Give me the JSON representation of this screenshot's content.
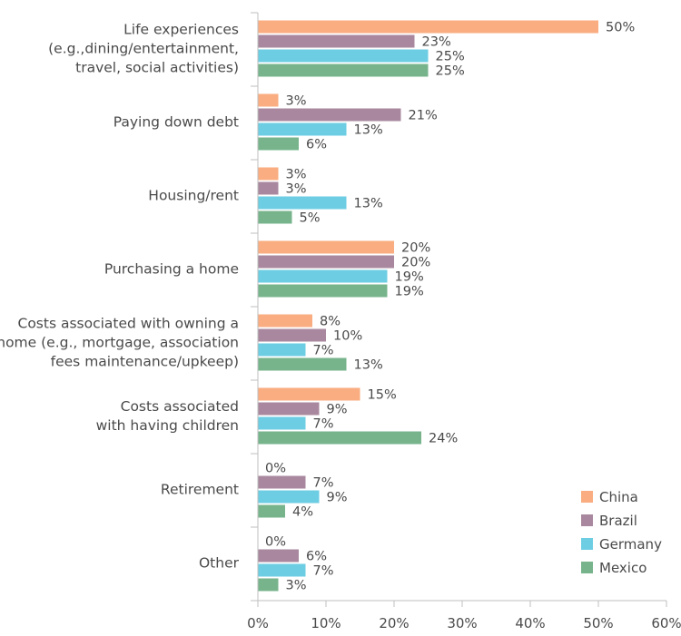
{
  "chart_data": {
    "type": "bar",
    "orientation": "horizontal",
    "title": "",
    "xlabel": "",
    "ylabel": "",
    "categories": [
      [
        "Life experiences",
        "(e.g.,dining/entertainment,",
        "travel, social activities)"
      ],
      [
        "Paying down debt"
      ],
      [
        "Housing/rent"
      ],
      [
        "Purchasing a home"
      ],
      [
        "Costs associated with owning a",
        "home (e.g., mortgage, association",
        "fees maintenance/upkeep)"
      ],
      [
        "Costs associated",
        "with having children"
      ],
      [
        "Retirement"
      ],
      [
        "Other"
      ]
    ],
    "series": [
      {
        "name": "China",
        "color": "#f9ad80",
        "values": [
          50,
          3,
          3,
          20,
          8,
          15,
          0,
          0
        ]
      },
      {
        "name": "Brazil",
        "color": "#a9889f",
        "values": [
          23,
          21,
          3,
          20,
          10,
          9,
          7,
          6
        ]
      },
      {
        "name": "Germany",
        "color": "#6dcde3",
        "values": [
          25,
          13,
          13,
          19,
          7,
          7,
          9,
          7
        ]
      },
      {
        "name": "Mexico",
        "color": "#77b48c",
        "values": [
          25,
          6,
          5,
          19,
          13,
          24,
          4,
          3
        ]
      }
    ],
    "xlim": [
      0,
      60
    ],
    "xticks": [
      0,
      10,
      20,
      30,
      40,
      50,
      60
    ],
    "tick_suffix": "%",
    "value_suffix": "%",
    "grid": false,
    "legend": "bottom-right"
  }
}
